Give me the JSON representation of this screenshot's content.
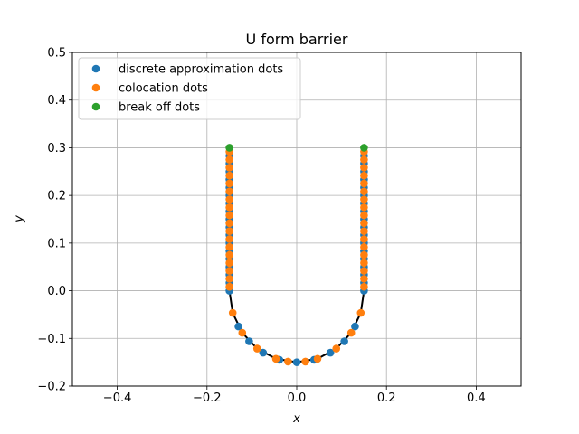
{
  "chart_data": {
    "type": "scatter",
    "title": "U form barrier",
    "xlabel": "x",
    "ylabel": "y",
    "xlim": [
      -0.5,
      0.5
    ],
    "ylim": [
      -0.2,
      0.5
    ],
    "xticks": [
      "−0.4",
      "−0.2",
      "0.0",
      "0.2",
      "0.4"
    ],
    "xtick_values": [
      -0.4,
      -0.2,
      0.0,
      0.2,
      0.4
    ],
    "yticks": [
      "−0.2",
      "−0.1",
      "0.0",
      "0.1",
      "0.2",
      "0.3",
      "0.4",
      "0.5"
    ],
    "ytick_values": [
      -0.2,
      -0.1,
      0.0,
      0.1,
      0.2,
      0.3,
      0.4,
      0.5
    ],
    "grid": true,
    "legend_position": "top-left",
    "curve": {
      "color": "#000000",
      "points": [
        [
          -0.15,
          0.3
        ],
        [
          -0.15,
          0.0
        ],
        [
          -0.1427,
          -0.0464
        ],
        [
          -0.1214,
          -0.0882
        ],
        [
          -0.0882,
          -0.1214
        ],
        [
          -0.0464,
          -0.1427
        ],
        [
          0.0,
          -0.15
        ],
        [
          0.0464,
          -0.1427
        ],
        [
          0.0882,
          -0.1214
        ],
        [
          0.1214,
          -0.0882
        ],
        [
          0.1427,
          -0.0464
        ],
        [
          0.15,
          0.0
        ],
        [
          0.15,
          0.3
        ]
      ]
    },
    "series": [
      {
        "name": "discrete approximation dots",
        "color": "#1f77b4",
        "points": [
          [
            -0.15,
            0.2833
          ],
          [
            -0.15,
            0.2667
          ],
          [
            -0.15,
            0.25
          ],
          [
            -0.15,
            0.2333
          ],
          [
            -0.15,
            0.2167
          ],
          [
            -0.15,
            0.2
          ],
          [
            -0.15,
            0.1833
          ],
          [
            -0.15,
            0.1667
          ],
          [
            -0.15,
            0.15
          ],
          [
            -0.15,
            0.1333
          ],
          [
            -0.15,
            0.1167
          ],
          [
            -0.15,
            0.1
          ],
          [
            -0.15,
            0.0833
          ],
          [
            -0.15,
            0.0667
          ],
          [
            -0.15,
            0.05
          ],
          [
            -0.15,
            0.0333
          ],
          [
            -0.15,
            0.0167
          ],
          [
            -0.15,
            0.0
          ],
          [
            -0.1299,
            -0.075
          ],
          [
            -0.1061,
            -0.1061
          ],
          [
            -0.075,
            -0.1299
          ],
          [
            -0.0388,
            -0.1449
          ],
          [
            0.0,
            -0.15
          ],
          [
            0.0388,
            -0.1449
          ],
          [
            0.075,
            -0.1299
          ],
          [
            0.1061,
            -0.1061
          ],
          [
            0.1299,
            -0.075
          ],
          [
            0.15,
            0.0
          ],
          [
            0.15,
            0.0167
          ],
          [
            0.15,
            0.0333
          ],
          [
            0.15,
            0.05
          ],
          [
            0.15,
            0.0667
          ],
          [
            0.15,
            0.0833
          ],
          [
            0.15,
            0.1
          ],
          [
            0.15,
            0.1167
          ],
          [
            0.15,
            0.1333
          ],
          [
            0.15,
            0.15
          ],
          [
            0.15,
            0.1667
          ],
          [
            0.15,
            0.1833
          ],
          [
            0.15,
            0.2
          ],
          [
            0.15,
            0.2167
          ],
          [
            0.15,
            0.2333
          ],
          [
            0.15,
            0.25
          ],
          [
            0.15,
            0.2667
          ],
          [
            0.15,
            0.2833
          ]
        ]
      },
      {
        "name": "colocation dots",
        "color": "#ff7f0e",
        "points": [
          [
            -0.15,
            0.2917
          ],
          [
            -0.15,
            0.275
          ],
          [
            -0.15,
            0.2583
          ],
          [
            -0.15,
            0.2417
          ],
          [
            -0.15,
            0.225
          ],
          [
            -0.15,
            0.2083
          ],
          [
            -0.15,
            0.1917
          ],
          [
            -0.15,
            0.175
          ],
          [
            -0.15,
            0.1583
          ],
          [
            -0.15,
            0.1417
          ],
          [
            -0.15,
            0.125
          ],
          [
            -0.15,
            0.1083
          ],
          [
            -0.15,
            0.0917
          ],
          [
            -0.15,
            0.075
          ],
          [
            -0.15,
            0.0583
          ],
          [
            -0.15,
            0.0417
          ],
          [
            -0.15,
            0.025
          ],
          [
            -0.15,
            0.0083
          ],
          [
            -0.1427,
            -0.0464
          ],
          [
            -0.1214,
            -0.0882
          ],
          [
            -0.0882,
            -0.1214
          ],
          [
            -0.0464,
            -0.1427
          ],
          [
            -0.0194,
            -0.1487
          ],
          [
            0.0194,
            -0.1487
          ],
          [
            0.0464,
            -0.1427
          ],
          [
            0.0882,
            -0.1214
          ],
          [
            0.1214,
            -0.0882
          ],
          [
            0.1427,
            -0.0464
          ],
          [
            0.15,
            0.0083
          ],
          [
            0.15,
            0.025
          ],
          [
            0.15,
            0.0417
          ],
          [
            0.15,
            0.0583
          ],
          [
            0.15,
            0.075
          ],
          [
            0.15,
            0.0917
          ],
          [
            0.15,
            0.1083
          ],
          [
            0.15,
            0.125
          ],
          [
            0.15,
            0.1417
          ],
          [
            0.15,
            0.1583
          ],
          [
            0.15,
            0.175
          ],
          [
            0.15,
            0.1917
          ],
          [
            0.15,
            0.2083
          ],
          [
            0.15,
            0.225
          ],
          [
            0.15,
            0.2417
          ],
          [
            0.15,
            0.2583
          ],
          [
            0.15,
            0.275
          ],
          [
            0.15,
            0.2917
          ]
        ]
      },
      {
        "name": "break off dots",
        "color": "#2ca02c",
        "points": [
          [
            -0.15,
            0.3
          ],
          [
            0.15,
            0.3
          ]
        ]
      }
    ]
  }
}
